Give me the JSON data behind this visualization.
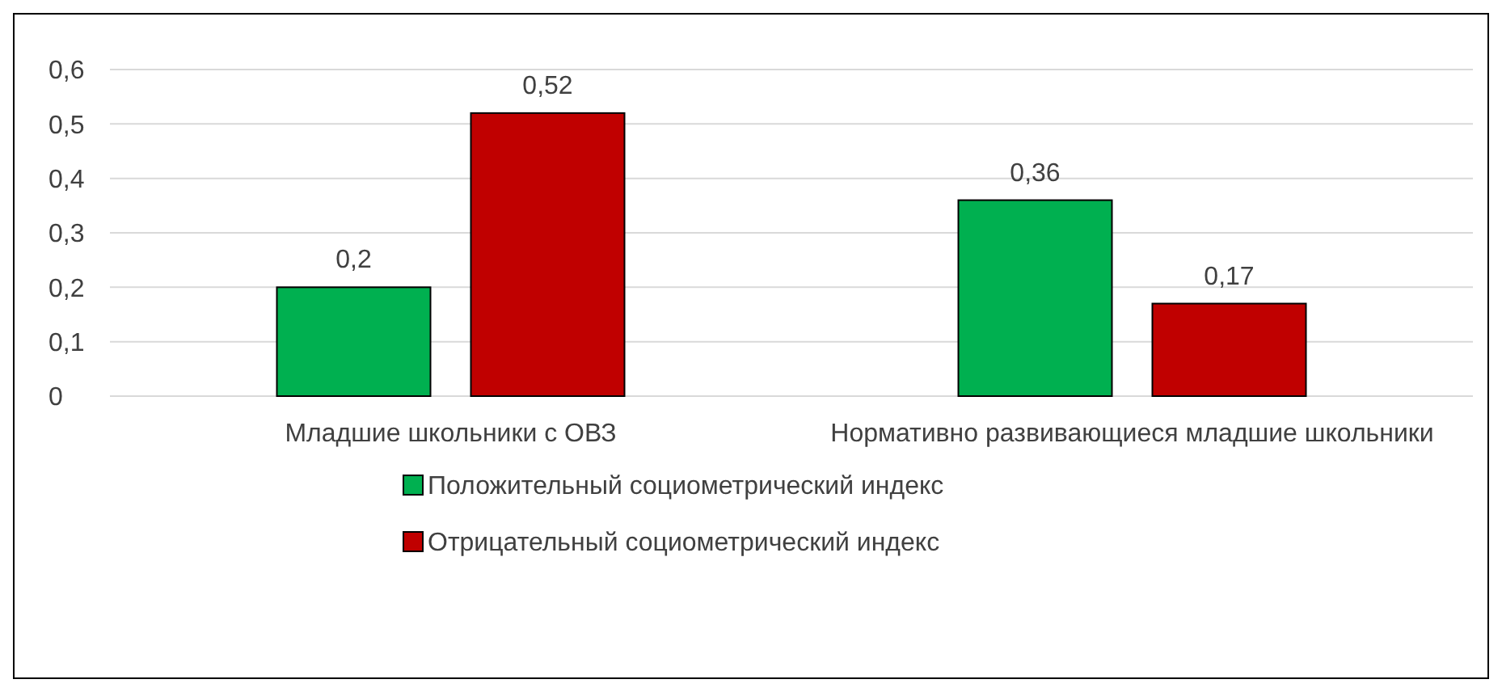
{
  "chart_data": {
    "type": "bar",
    "categories": [
      "Младшие школьники с ОВЗ",
      "Нормативно развивающиеся младшие школьники"
    ],
    "series": [
      {
        "name": "Положительный социометрический индекс",
        "color": "#00b050",
        "values": [
          0.2,
          0.36
        ],
        "value_labels": [
          "0,2",
          "0,36"
        ]
      },
      {
        "name": "Отрицательный социометрический индекс",
        "color": "#c00000",
        "values": [
          0.52,
          0.17
        ],
        "value_labels": [
          "0,52",
          "0,17"
        ]
      }
    ],
    "ylim": [
      0,
      0.6
    ],
    "yticks": [
      {
        "value": 0,
        "label": "0"
      },
      {
        "value": 0.1,
        "label": "0,1"
      },
      {
        "value": 0.2,
        "label": "0,2"
      },
      {
        "value": 0.3,
        "label": "0,3"
      },
      {
        "value": 0.4,
        "label": "0,4"
      },
      {
        "value": 0.5,
        "label": "0,5"
      },
      {
        "value": 0.6,
        "label": "0,6"
      }
    ],
    "grid": "y",
    "legend": "bottom"
  }
}
